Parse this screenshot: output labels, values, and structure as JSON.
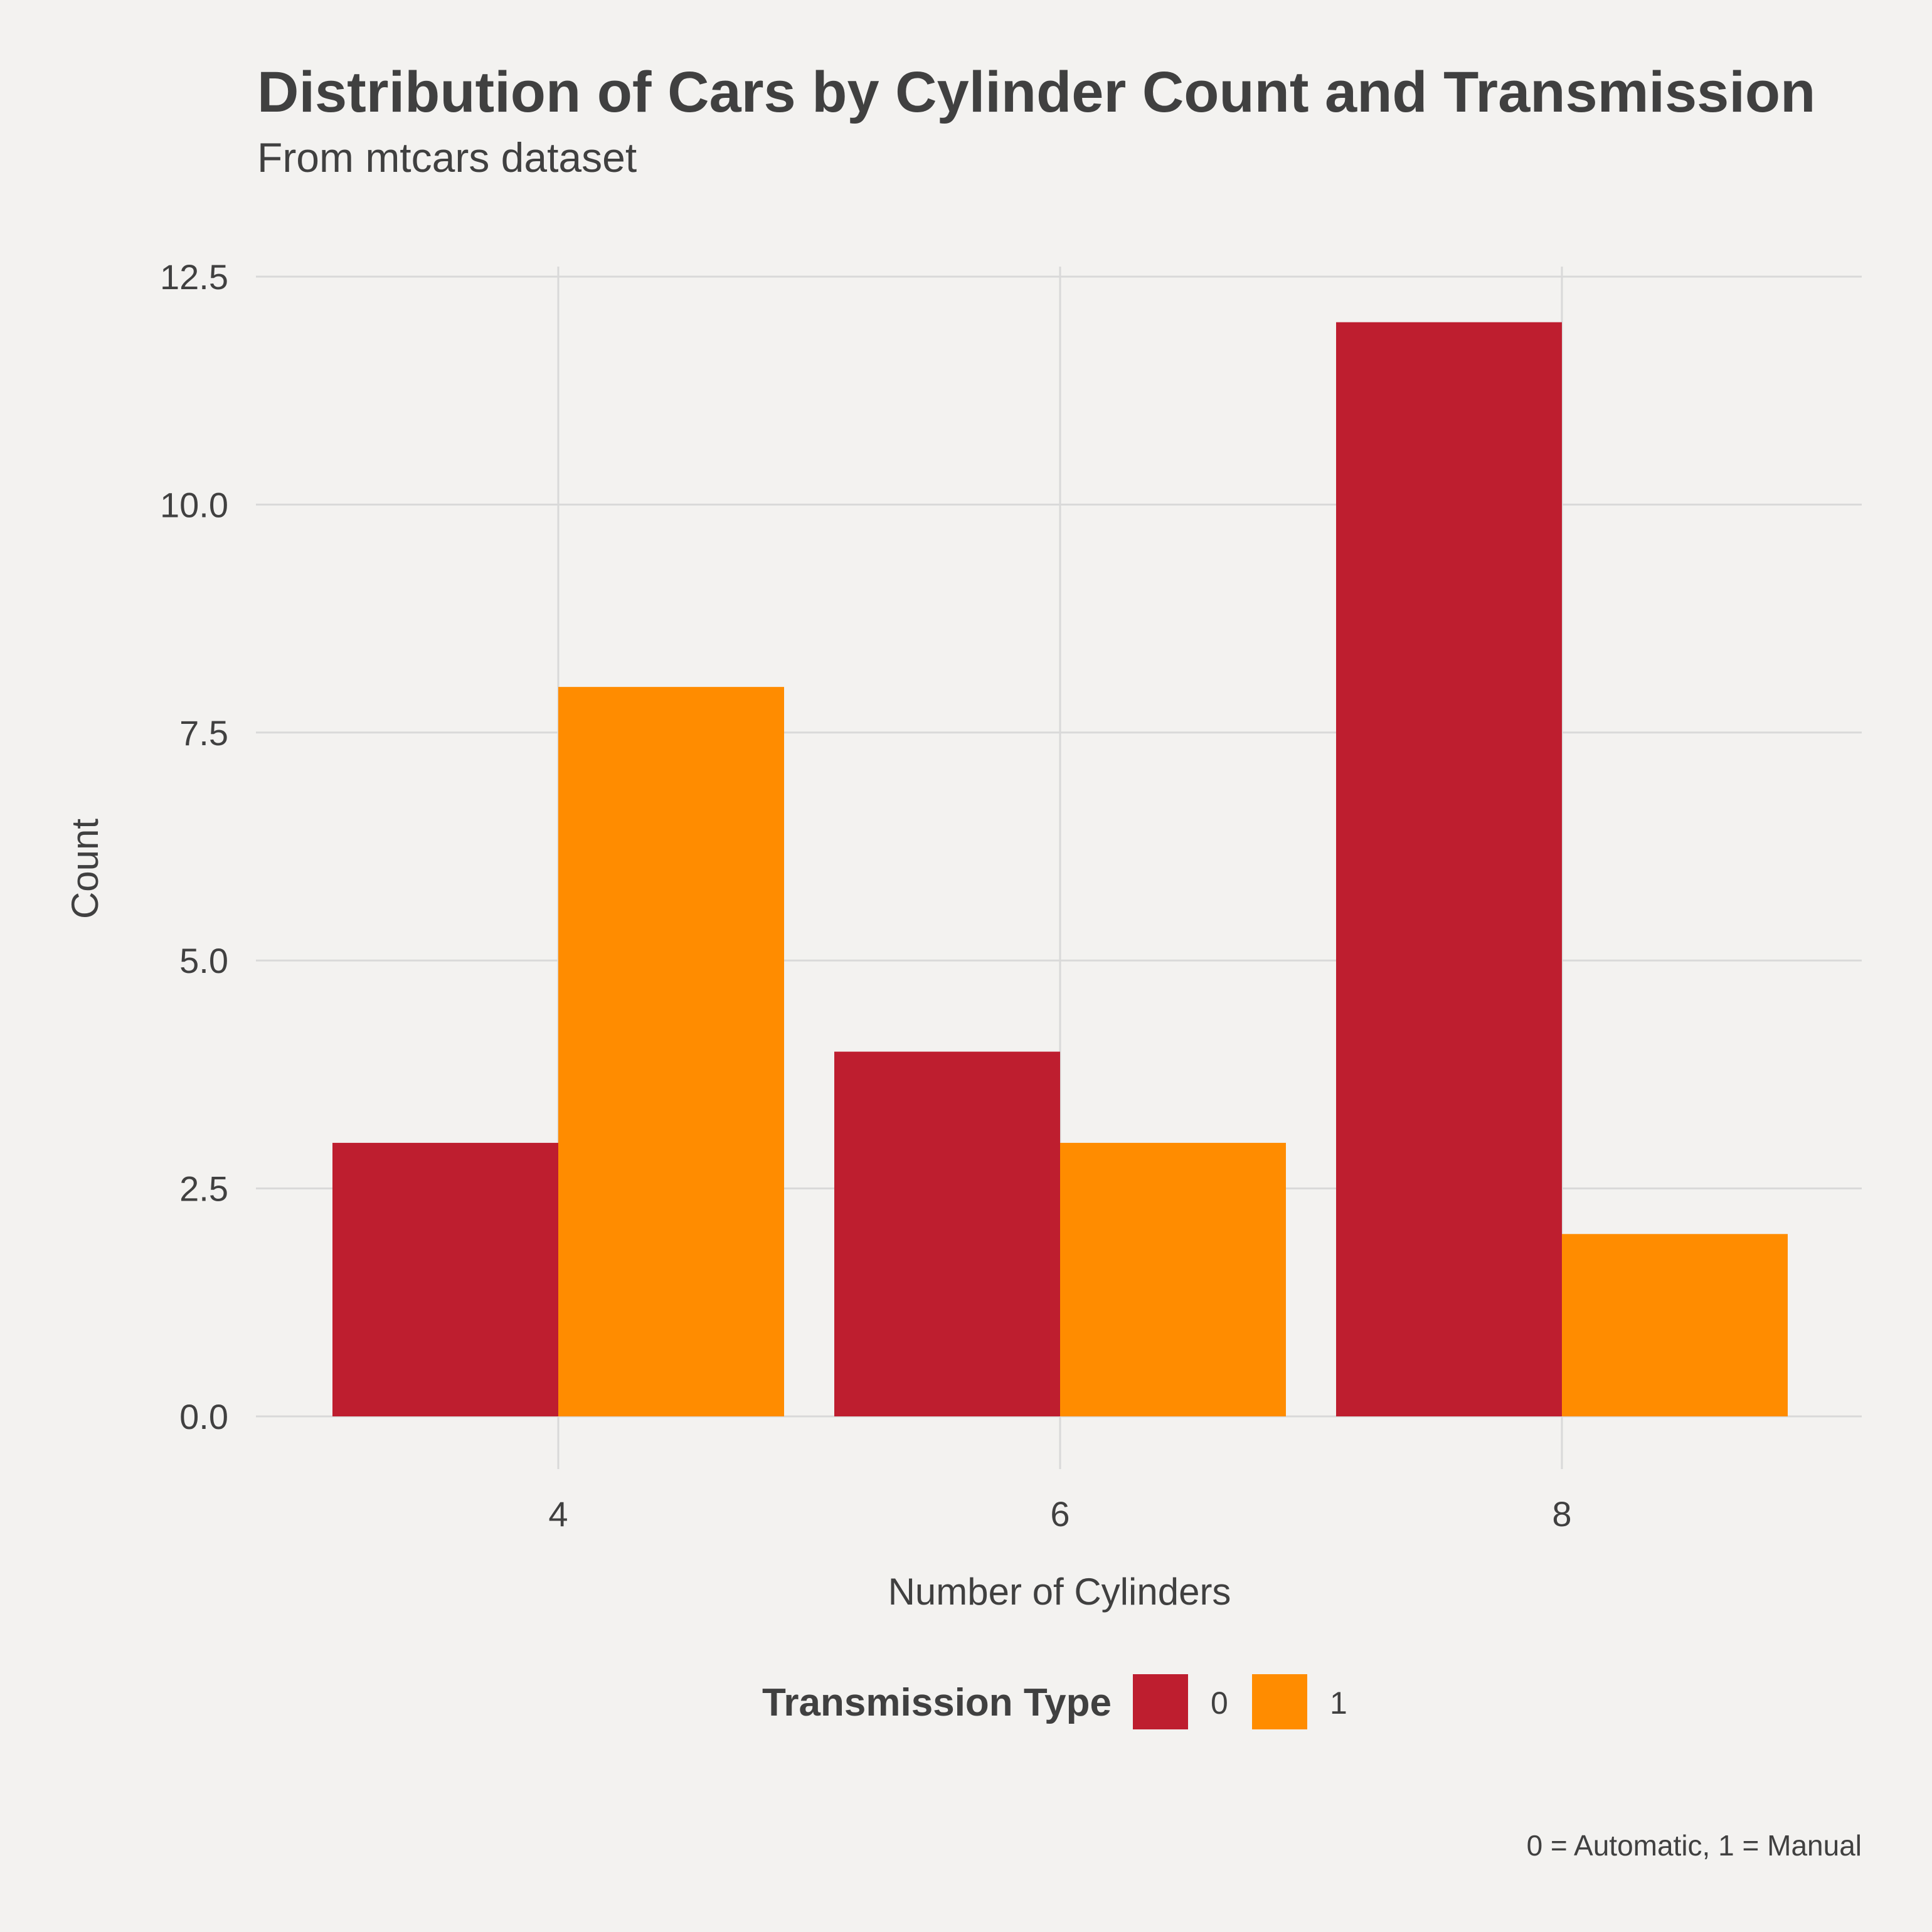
{
  "chart_data": {
    "type": "bar",
    "title": "Distribution of Cars by Cylinder Count and Transmission",
    "subtitle": "From mtcars dataset",
    "xlabel": "Number of Cylinders",
    "ylabel": "Count",
    "categories": [
      "4",
      "6",
      "8"
    ],
    "series": [
      {
        "name": "0",
        "color": "#be1e2f",
        "values": [
          3,
          4,
          12
        ]
      },
      {
        "name": "1",
        "color": "#ff8c00",
        "values": [
          8,
          3,
          2
        ]
      }
    ],
    "ylim": [
      0,
      12.5
    ],
    "yticks": [
      "0.0",
      "2.5",
      "5.0",
      "7.5",
      "10.0",
      "12.5"
    ],
    "grid": true,
    "legend": {
      "title": "Transmission Type",
      "placement": "bottom"
    },
    "caption": "0 = Automatic, 1 = Manual"
  }
}
